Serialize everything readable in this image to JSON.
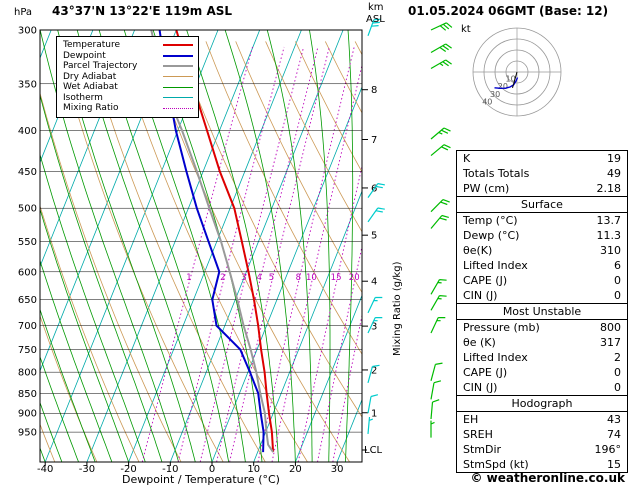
{
  "header": {
    "pressure_unit": "hPa",
    "station": "43°37'N 13°22'E 119m ASL",
    "altitude_unit_km": "km",
    "altitude_unit_asl": "ASL",
    "datetime": "01.05.2024 06GMT (Base: 12)"
  },
  "colors": {
    "temperature": "#DD0000",
    "dewpoint": "#0000CC",
    "parcel": "#999999",
    "dry_adiabat": "#CC9955",
    "wet_adiabat": "#009900",
    "isotherm": "#00AAAA",
    "mixing_ratio": "#BB00BB",
    "wind_barb_inner": "#00CCCC",
    "wind_barb_outer": "#00BB00",
    "hodograph_trace": "#0000CC"
  },
  "legend": {
    "items": [
      {
        "label": "Temperature",
        "color": "#DD0000",
        "style": "solid",
        "width": 2
      },
      {
        "label": "Dewpoint",
        "color": "#0000CC",
        "style": "solid",
        "width": 2
      },
      {
        "label": "Parcel Trajectory",
        "color": "#999999",
        "style": "solid",
        "width": 2
      },
      {
        "label": "Dry Adiabat",
        "color": "#CC9955",
        "style": "solid",
        "width": 1
      },
      {
        "label": "Wet Adiabat",
        "color": "#009900",
        "style": "solid",
        "width": 1
      },
      {
        "label": "Isotherm",
        "color": "#00AAAA",
        "style": "solid",
        "width": 1
      },
      {
        "label": "Mixing Ratio",
        "color": "#BB00BB",
        "style": "dotted",
        "width": 1
      }
    ]
  },
  "chart_data": {
    "type": "line",
    "title": "Skew-T / log-P atmospheric sounding",
    "x_axis": {
      "label": "Dewpoint / Temperature (°C)",
      "min": -40,
      "max": 36,
      "ticks": [
        -40,
        -30,
        -20,
        -10,
        0,
        10,
        20,
        30
      ]
    },
    "y_axis": {
      "label": "hPa",
      "scale": "log",
      "min": 300,
      "max": 1035,
      "ticks": [
        300,
        350,
        400,
        450,
        500,
        550,
        600,
        650,
        700,
        750,
        800,
        850,
        900,
        950
      ]
    },
    "km_ticks": [
      1,
      2,
      3,
      4,
      5,
      6,
      7,
      8
    ],
    "lcl_label": "LCL",
    "lcl_pressure": 1000,
    "mixing_ratio_axis_label": "Mixing Ratio (g/kg)",
    "mixing_ratio_lines": [
      1,
      2,
      3,
      4,
      5,
      8,
      10,
      15,
      20,
      25
    ],
    "series": [
      {
        "name": "Temperature",
        "color": "#DD0000",
        "points": [
          [
            1006,
            13.7
          ],
          [
            950,
            11.5
          ],
          [
            900,
            9.0
          ],
          [
            850,
            6.5
          ],
          [
            800,
            4.0
          ],
          [
            750,
            1.0
          ],
          [
            700,
            -2.0
          ],
          [
            650,
            -5.5
          ],
          [
            600,
            -9.5
          ],
          [
            550,
            -14.0
          ],
          [
            500,
            -19.0
          ],
          [
            450,
            -26.0
          ],
          [
            400,
            -33.0
          ],
          [
            350,
            -41.0
          ],
          [
            300,
            -50.0
          ]
        ]
      },
      {
        "name": "Dewpoint",
        "color": "#0000CC",
        "points": [
          [
            1006,
            11.3
          ],
          [
            950,
            9.5
          ],
          [
            900,
            7.0
          ],
          [
            850,
            4.5
          ],
          [
            800,
            0.5
          ],
          [
            750,
            -4.0
          ],
          [
            700,
            -12.0
          ],
          [
            650,
            -15.5
          ],
          [
            600,
            -16.5
          ],
          [
            550,
            -22.0
          ],
          [
            500,
            -28.0
          ],
          [
            450,
            -34.0
          ],
          [
            400,
            -40.5
          ],
          [
            350,
            -47.0
          ],
          [
            300,
            -54.0
          ]
        ]
      },
      {
        "name": "Parcel Trajectory",
        "color": "#999999",
        "points": [
          [
            1006,
            13.7
          ],
          [
            985,
            11.8
          ],
          [
            950,
            10.2
          ],
          [
            900,
            8.0
          ],
          [
            850,
            5.0
          ],
          [
            800,
            2.0
          ],
          [
            750,
            -1.5
          ],
          [
            700,
            -5.5
          ],
          [
            650,
            -9.5
          ],
          [
            600,
            -14.0
          ],
          [
            550,
            -19.0
          ],
          [
            500,
            -25.0
          ],
          [
            450,
            -31.5
          ],
          [
            400,
            -39.0
          ],
          [
            350,
            -48.0
          ],
          [
            300,
            -56.0
          ]
        ]
      }
    ],
    "wind_barbs_inner": [
      {
        "p": 305,
        "dir": 200,
        "spd": 30
      },
      {
        "p": 485,
        "dir": 215,
        "spd": 20
      },
      {
        "p": 520,
        "dir": 215,
        "spd": 20
      },
      {
        "p": 675,
        "dir": 205,
        "spd": 15
      },
      {
        "p": 715,
        "dir": 205,
        "spd": 15
      },
      {
        "p": 825,
        "dir": 195,
        "spd": 10
      },
      {
        "p": 900,
        "dir": 190,
        "spd": 10
      },
      {
        "p": 955,
        "dir": 185,
        "spd": 5
      }
    ],
    "wind_barbs_outer": [
      {
        "p": 300,
        "dir": 245,
        "spd": 30
      },
      {
        "p": 320,
        "dir": 240,
        "spd": 30
      },
      {
        "p": 335,
        "dir": 240,
        "spd": 25
      },
      {
        "p": 410,
        "dir": 230,
        "spd": 25
      },
      {
        "p": 430,
        "dir": 230,
        "spd": 20
      },
      {
        "p": 505,
        "dir": 225,
        "spd": 20
      },
      {
        "p": 530,
        "dir": 220,
        "spd": 20
      },
      {
        "p": 640,
        "dir": 210,
        "spd": 15
      },
      {
        "p": 670,
        "dir": 210,
        "spd": 15
      },
      {
        "p": 715,
        "dir": 205,
        "spd": 15
      },
      {
        "p": 820,
        "dir": 195,
        "spd": 10
      },
      {
        "p": 865,
        "dir": 190,
        "spd": 10
      },
      {
        "p": 915,
        "dir": 185,
        "spd": 10
      },
      {
        "p": 965,
        "dir": 180,
        "spd": 5
      }
    ]
  },
  "hodograph": {
    "unit_label": "kt",
    "rings": [
      10,
      20,
      30,
      40
    ],
    "levels": [
      {
        "dir": 175,
        "spd": 5
      },
      {
        "dir": 185,
        "spd": 8
      },
      {
        "dir": 195,
        "spd": 12
      },
      {
        "dir": 205,
        "spd": 15
      },
      {
        "dir": 215,
        "spd": 18
      },
      {
        "dir": 225,
        "spd": 21
      },
      {
        "dir": 235,
        "spd": 25
      }
    ],
    "storm_motion": {
      "dir": 196,
      "spd": 15
    }
  },
  "table": {
    "sections": [
      {
        "title": null,
        "rows": [
          [
            "K",
            "19"
          ],
          [
            "Totals Totals",
            "49"
          ],
          [
            "PW (cm)",
            "2.18"
          ]
        ]
      },
      {
        "title": "Surface",
        "rows": [
          [
            "Temp (°C)",
            "13.7"
          ],
          [
            "Dewp (°C)",
            "11.3"
          ],
          [
            "θe(K)",
            "310"
          ],
          [
            "Lifted Index",
            "6"
          ],
          [
            "CAPE (J)",
            "0"
          ],
          [
            "CIN (J)",
            "0"
          ]
        ]
      },
      {
        "title": "Most Unstable",
        "rows": [
          [
            "Pressure (mb)",
            "800"
          ],
          [
            "θe (K)",
            "317"
          ],
          [
            "Lifted Index",
            "2"
          ],
          [
            "CAPE (J)",
            "0"
          ],
          [
            "CIN (J)",
            "0"
          ]
        ]
      },
      {
        "title": "Hodograph",
        "rows": [
          [
            "EH",
            "43"
          ],
          [
            "SREH",
            "74"
          ],
          [
            "StmDir",
            "196°"
          ],
          [
            "StmSpd (kt)",
            "15"
          ]
        ]
      }
    ]
  },
  "footer": {
    "copyright": "© weatheronline.co.uk"
  }
}
